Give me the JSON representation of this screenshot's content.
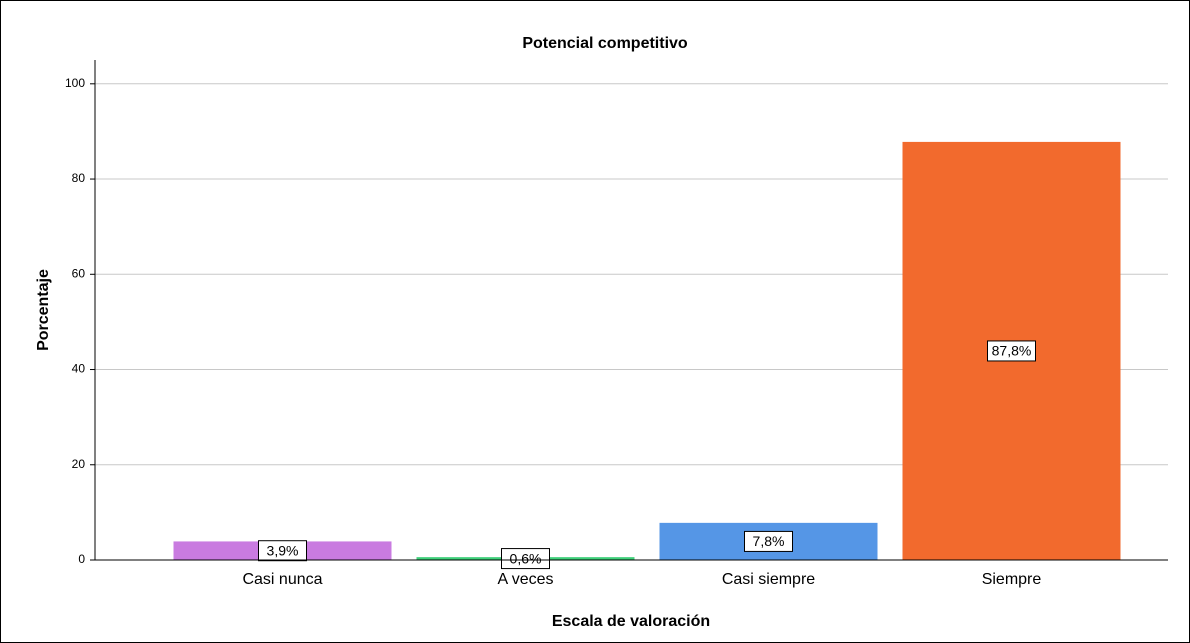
{
  "chart_data": {
    "type": "bar",
    "title": "Potencial competitivo",
    "x_label": "Escala de valoración",
    "y_label": "Porcentaje",
    "categories": [
      "Casi nunca",
      "A veces",
      "Casi siempre",
      "Siempre"
    ],
    "values": [
      3.9,
      0.6,
      7.8,
      87.8
    ],
    "value_labels": [
      "3,9%",
      "0,6%",
      "7,8%",
      "87,8%"
    ],
    "colors": [
      "#c97be0",
      "#3fd07a",
      "#5596e6",
      "#f26a2d"
    ],
    "ylim": [
      0,
      105
    ],
    "yticks": [
      0,
      20,
      40,
      60,
      80,
      100
    ],
    "grid": true
  }
}
